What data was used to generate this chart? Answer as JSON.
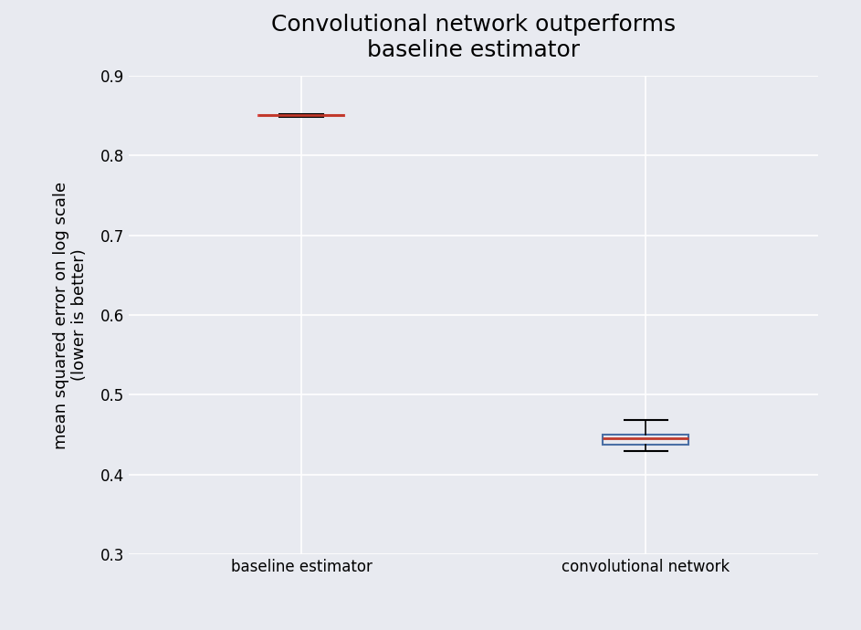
{
  "title": "Convolutional network outperforms\nbaseline estimator",
  "ylabel": "mean squared error on log scale\n(lower is better)",
  "categories": [
    "baseline estimator",
    "convolutional network"
  ],
  "boxplot_data": {
    "baseline estimator": {
      "whislo": 0.848,
      "q1": 0.8495,
      "med": 0.85,
      "q3": 0.8505,
      "whishi": 0.852,
      "fliers": []
    },
    "convolutional network": {
      "whislo": 0.43,
      "q1": 0.437,
      "med": 0.445,
      "q3": 0.45,
      "whishi": 0.468,
      "fliers": []
    }
  },
  "ylim": [
    0.3,
    0.9
  ],
  "yticks": [
    0.3,
    0.4,
    0.5,
    0.6,
    0.7,
    0.8,
    0.9
  ],
  "box_color_baseline": "#e05555",
  "box_color_conv": "#4a6fa5",
  "median_color_baseline": "#c0392b",
  "median_color_conv": "#c0392b",
  "background_color": "#e8eaf0",
  "grid_color": "#ffffff",
  "title_fontsize": 18,
  "label_fontsize": 13,
  "tick_fontsize": 12,
  "box_width": 0.25,
  "figsize": [
    9.43,
    6.9
  ],
  "dpi": 100
}
